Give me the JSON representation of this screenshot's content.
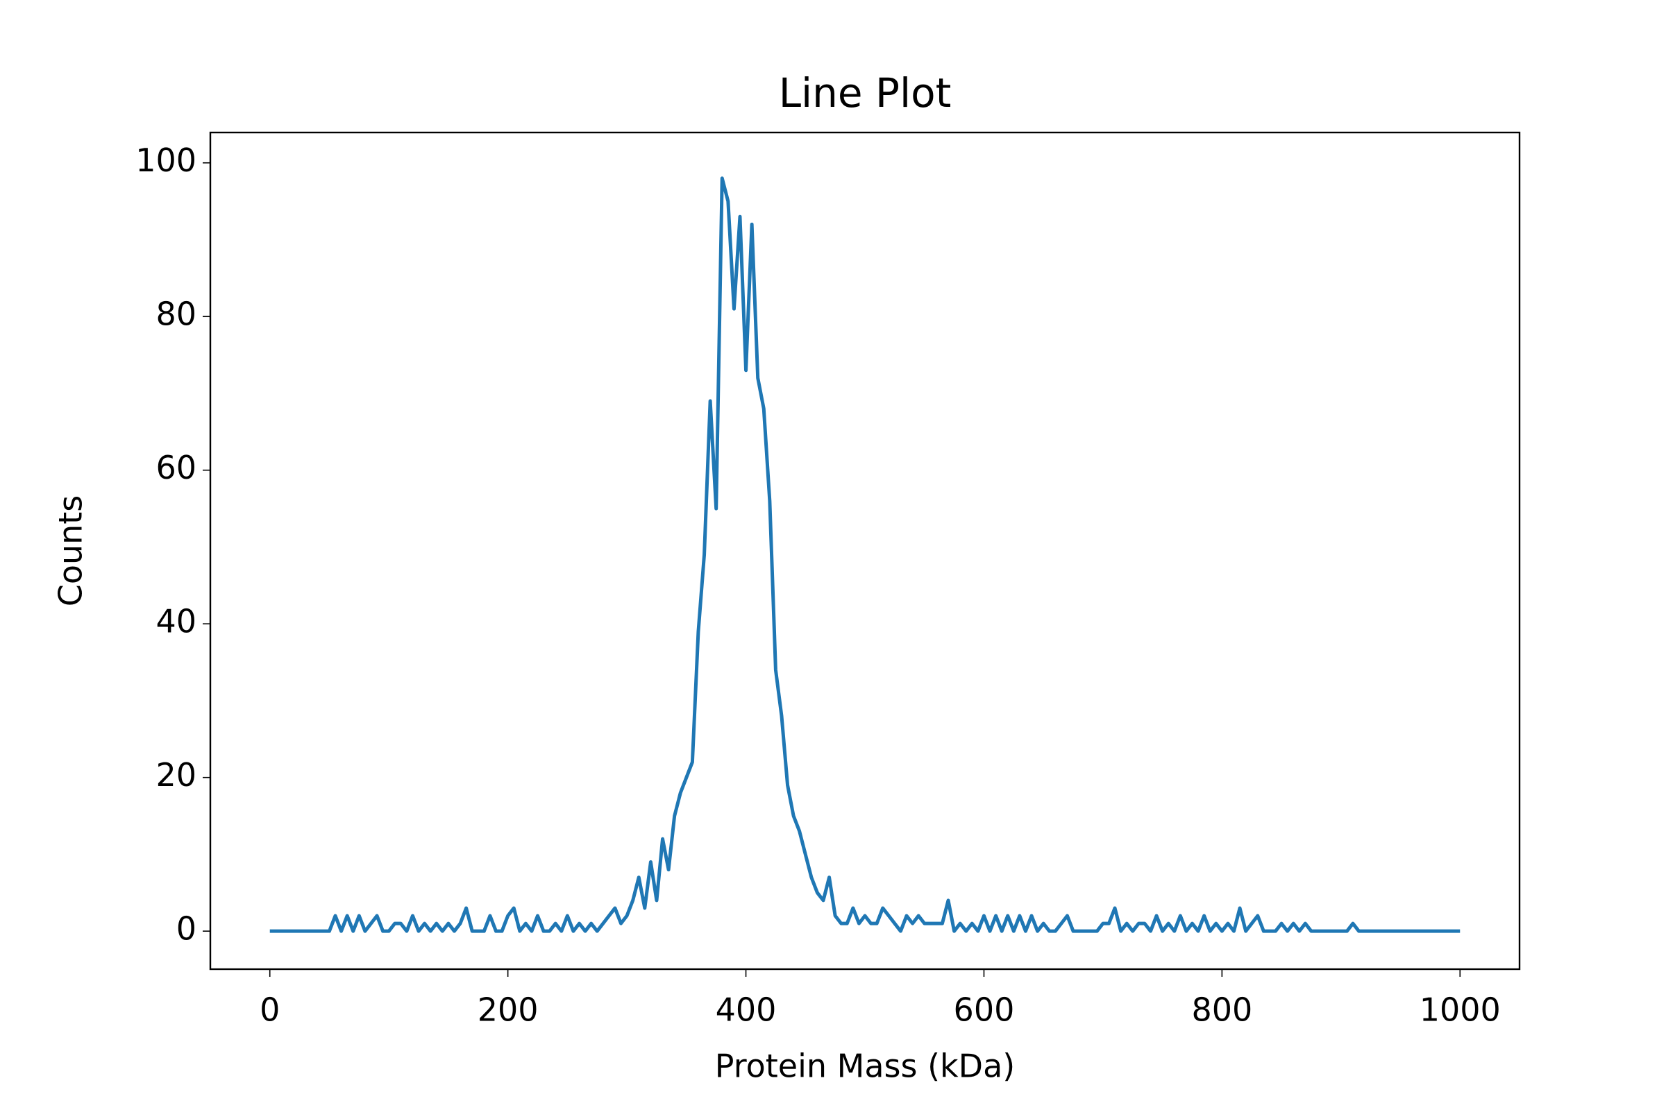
{
  "chart_data": {
    "type": "line",
    "title": "Line Plot",
    "x_label": "Protein Mass (kDa)",
    "y_label": "Counts",
    "x": [
      0,
      5,
      10,
      15,
      20,
      25,
      30,
      35,
      40,
      45,
      50,
      55,
      60,
      65,
      70,
      75,
      80,
      85,
      90,
      95,
      100,
      105,
      110,
      115,
      120,
      125,
      130,
      135,
      140,
      145,
      150,
      155,
      160,
      165,
      170,
      175,
      180,
      185,
      190,
      195,
      200,
      205,
      210,
      215,
      220,
      225,
      230,
      235,
      240,
      245,
      250,
      255,
      260,
      265,
      270,
      275,
      280,
      285,
      290,
      295,
      300,
      305,
      310,
      315,
      320,
      325,
      330,
      335,
      340,
      345,
      350,
      355,
      360,
      365,
      370,
      375,
      380,
      385,
      390,
      395,
      400,
      405,
      410,
      415,
      420,
      425,
      430,
      435,
      440,
      445,
      450,
      455,
      460,
      465,
      470,
      475,
      480,
      485,
      490,
      495,
      500,
      505,
      510,
      515,
      520,
      525,
      530,
      535,
      540,
      545,
      550,
      555,
      560,
      565,
      570,
      575,
      580,
      585,
      590,
      595,
      600,
      605,
      610,
      615,
      620,
      625,
      630,
      635,
      640,
      645,
      650,
      655,
      660,
      665,
      670,
      675,
      680,
      685,
      690,
      695,
      700,
      705,
      710,
      715,
      720,
      725,
      730,
      735,
      740,
      745,
      750,
      755,
      760,
      765,
      770,
      775,
      780,
      785,
      790,
      795,
      800,
      805,
      810,
      815,
      820,
      825,
      830,
      835,
      840,
      845,
      850,
      855,
      860,
      865,
      870,
      875,
      880,
      885,
      890,
      895,
      900,
      905,
      910,
      915,
      920,
      925,
      930,
      935,
      940,
      945,
      950,
      955,
      960,
      965,
      970,
      975,
      980,
      985,
      990,
      995,
      1000
    ],
    "series": [
      {
        "name": "Counts",
        "color": "#1f77b4",
        "values": [
          0,
          0,
          0,
          0,
          0,
          0,
          0,
          0,
          0,
          0,
          0,
          2,
          0,
          2,
          0,
          2,
          0,
          1,
          2,
          0,
          0,
          1,
          1,
          0,
          2,
          0,
          1,
          0,
          1,
          0,
          1,
          0,
          1,
          3,
          0,
          0,
          0,
          2,
          0,
          0,
          2,
          3,
          0,
          1,
          0,
          2,
          0,
          0,
          1,
          0,
          2,
          0,
          1,
          0,
          1,
          0,
          1,
          2,
          3,
          1,
          2,
          4,
          7,
          3,
          9,
          4,
          12,
          8,
          15,
          18,
          20,
          22,
          39,
          49,
          69,
          55,
          98,
          95,
          81,
          93,
          73,
          92,
          72,
          68,
          56,
          34,
          28,
          19,
          15,
          13,
          10,
          7,
          5,
          4,
          7,
          2,
          1,
          1,
          3,
          1,
          2,
          1,
          1,
          3,
          2,
          1,
          0,
          2,
          1,
          2,
          1,
          1,
          1,
          1,
          4,
          0,
          1,
          0,
          1,
          0,
          2,
          0,
          2,
          0,
          2,
          0,
          2,
          0,
          2,
          0,
          1,
          0,
          0,
          1,
          2,
          0,
          0,
          0,
          0,
          0,
          1,
          1,
          3,
          0,
          1,
          0,
          1,
          1,
          0,
          2,
          0,
          1,
          0,
          2,
          0,
          1,
          0,
          2,
          0,
          1,
          0,
          1,
          0,
          3,
          0,
          1,
          2,
          0,
          0,
          0,
          1,
          0,
          1,
          0,
          1,
          0,
          0,
          0,
          0,
          0,
          0,
          0,
          1,
          0,
          0,
          0,
          0,
          0,
          0,
          0,
          0,
          0,
          0,
          0,
          0,
          0,
          0,
          0,
          0,
          0,
          0
        ]
      }
    ],
    "xlim": [
      -50,
      1050
    ],
    "ylim": [
      -4.95,
      103.95
    ],
    "xticks": [
      0,
      200,
      400,
      600,
      800,
      1000
    ],
    "yticks": [
      0,
      20,
      40,
      60,
      80,
      100
    ],
    "grid": false
  }
}
